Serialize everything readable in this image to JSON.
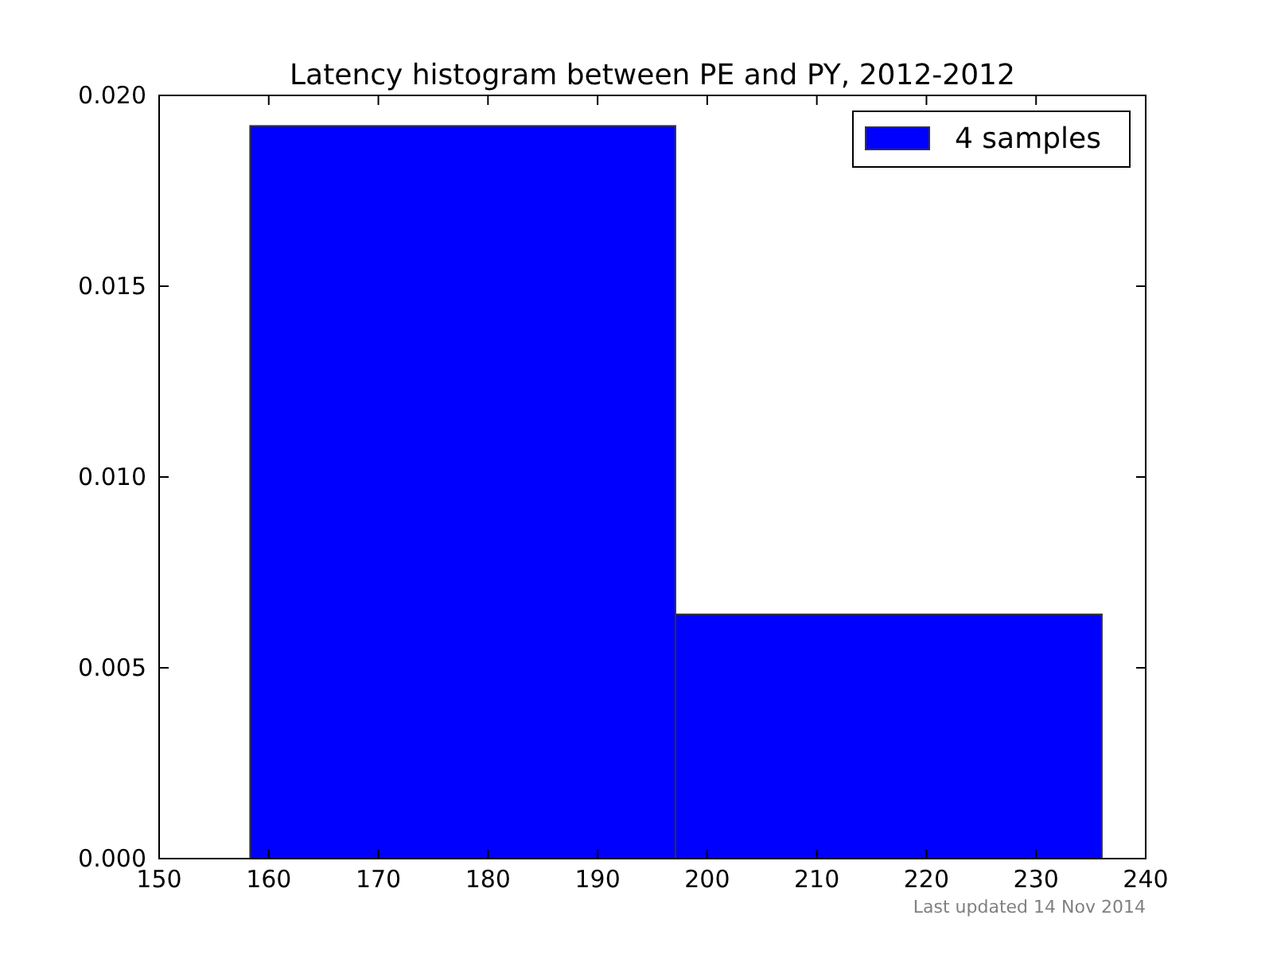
{
  "chart_data": {
    "type": "histogram",
    "title": "Latency histogram between PE and PY, 2012-2012",
    "bins": [
      158.3,
      197.1,
      236
    ],
    "series": [
      {
        "name": "4 samples",
        "color": "#0000ff",
        "values": [
          0.0192,
          0.0064
        ]
      }
    ],
    "xlim": [
      150,
      240
    ],
    "xticks": [
      150,
      160,
      170,
      180,
      190,
      200,
      210,
      220,
      230,
      240
    ],
    "ylim": [
      0,
      0.02
    ],
    "yticks": [
      {
        "value": 0,
        "label": "0.000"
      },
      {
        "value": 0.005,
        "label": "0.005"
      },
      {
        "value": 0.01,
        "label": "0.010"
      },
      {
        "value": 0.015,
        "label": "0.015"
      },
      {
        "value": 0.02,
        "label": "0.020"
      }
    ],
    "legend": "top right",
    "annotations": [
      "Last updated 14 Nov 2014"
    ]
  }
}
